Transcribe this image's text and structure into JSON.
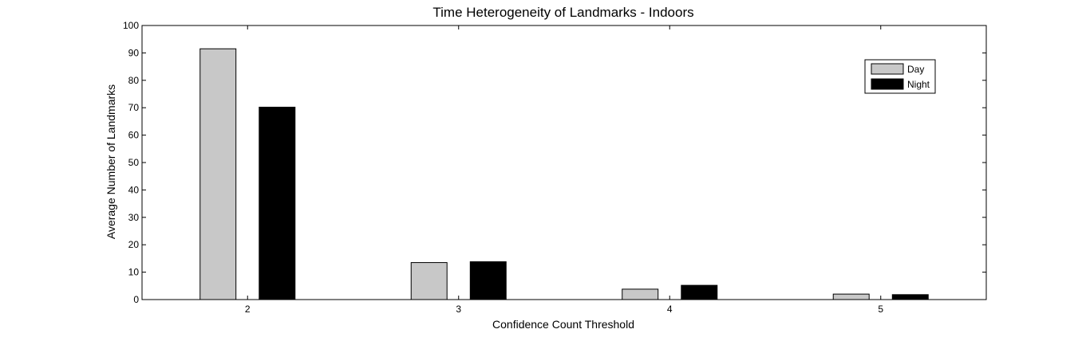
{
  "chart_data": {
    "type": "bar",
    "title": "Time Heterogeneity of Landmarks - Indoors",
    "xlabel": "Confidence Count Threshold",
    "ylabel": "Average Number of Landmarks",
    "categories": [
      "2",
      "3",
      "4",
      "5"
    ],
    "series": [
      {
        "name": "Day",
        "color": "#c8c8c8",
        "values": [
          91.5,
          13.5,
          3.8,
          2.0
        ]
      },
      {
        "name": "Night",
        "color": "#000000",
        "values": [
          70.2,
          13.8,
          5.2,
          1.8
        ]
      }
    ],
    "ylim": [
      0,
      100
    ],
    "yticks": [
      0,
      10,
      20,
      30,
      40,
      50,
      60,
      70,
      80,
      90,
      100
    ],
    "xlim": [
      1.5,
      5.5
    ],
    "grid": false,
    "legend_position": "top-right"
  }
}
